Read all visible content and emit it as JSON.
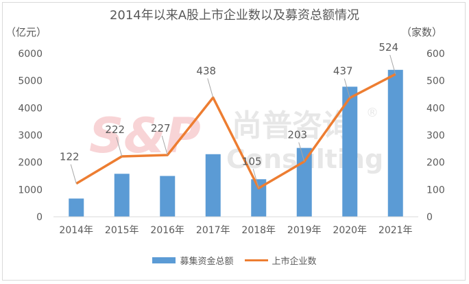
{
  "title": "2014年以来A股上市企业数以及募资总额情况",
  "watermark": {
    "logo": "S&P",
    "chinese": "尚普咨询",
    "english": "Consulting",
    "registered": "®"
  },
  "chart_data": {
    "type": "bar",
    "categories": [
      "2014年",
      "2015年",
      "2016年",
      "2017年",
      "2018年",
      "2019年",
      "2020年",
      "2021年"
    ],
    "series": [
      {
        "name": "募集资金总额",
        "type": "bar",
        "axis": "left",
        "color": "#5b9bd5",
        "values": [
          670,
          1580,
          1500,
          2300,
          1380,
          2530,
          4780,
          5400
        ]
      },
      {
        "name": "上市企业数",
        "type": "line",
        "axis": "right",
        "color": "#ed7d31",
        "values": [
          122,
          222,
          227,
          438,
          105,
          203,
          437,
          524
        ],
        "data_labels": [
          "122",
          "222",
          "227",
          "438",
          "105",
          "203",
          "437",
          "524"
        ]
      }
    ],
    "y_left": {
      "unit": "（亿元）",
      "ylim": [
        0,
        6000
      ],
      "ticks": [
        "0",
        "1000",
        "2000",
        "3000",
        "4000",
        "5000",
        "6000"
      ]
    },
    "y_right": {
      "unit": "（家数）",
      "ylim": [
        0,
        600
      ],
      "ticks": [
        "0",
        "100",
        "200",
        "300",
        "400",
        "500",
        "600"
      ]
    },
    "grid": false,
    "legend": "bottom"
  }
}
